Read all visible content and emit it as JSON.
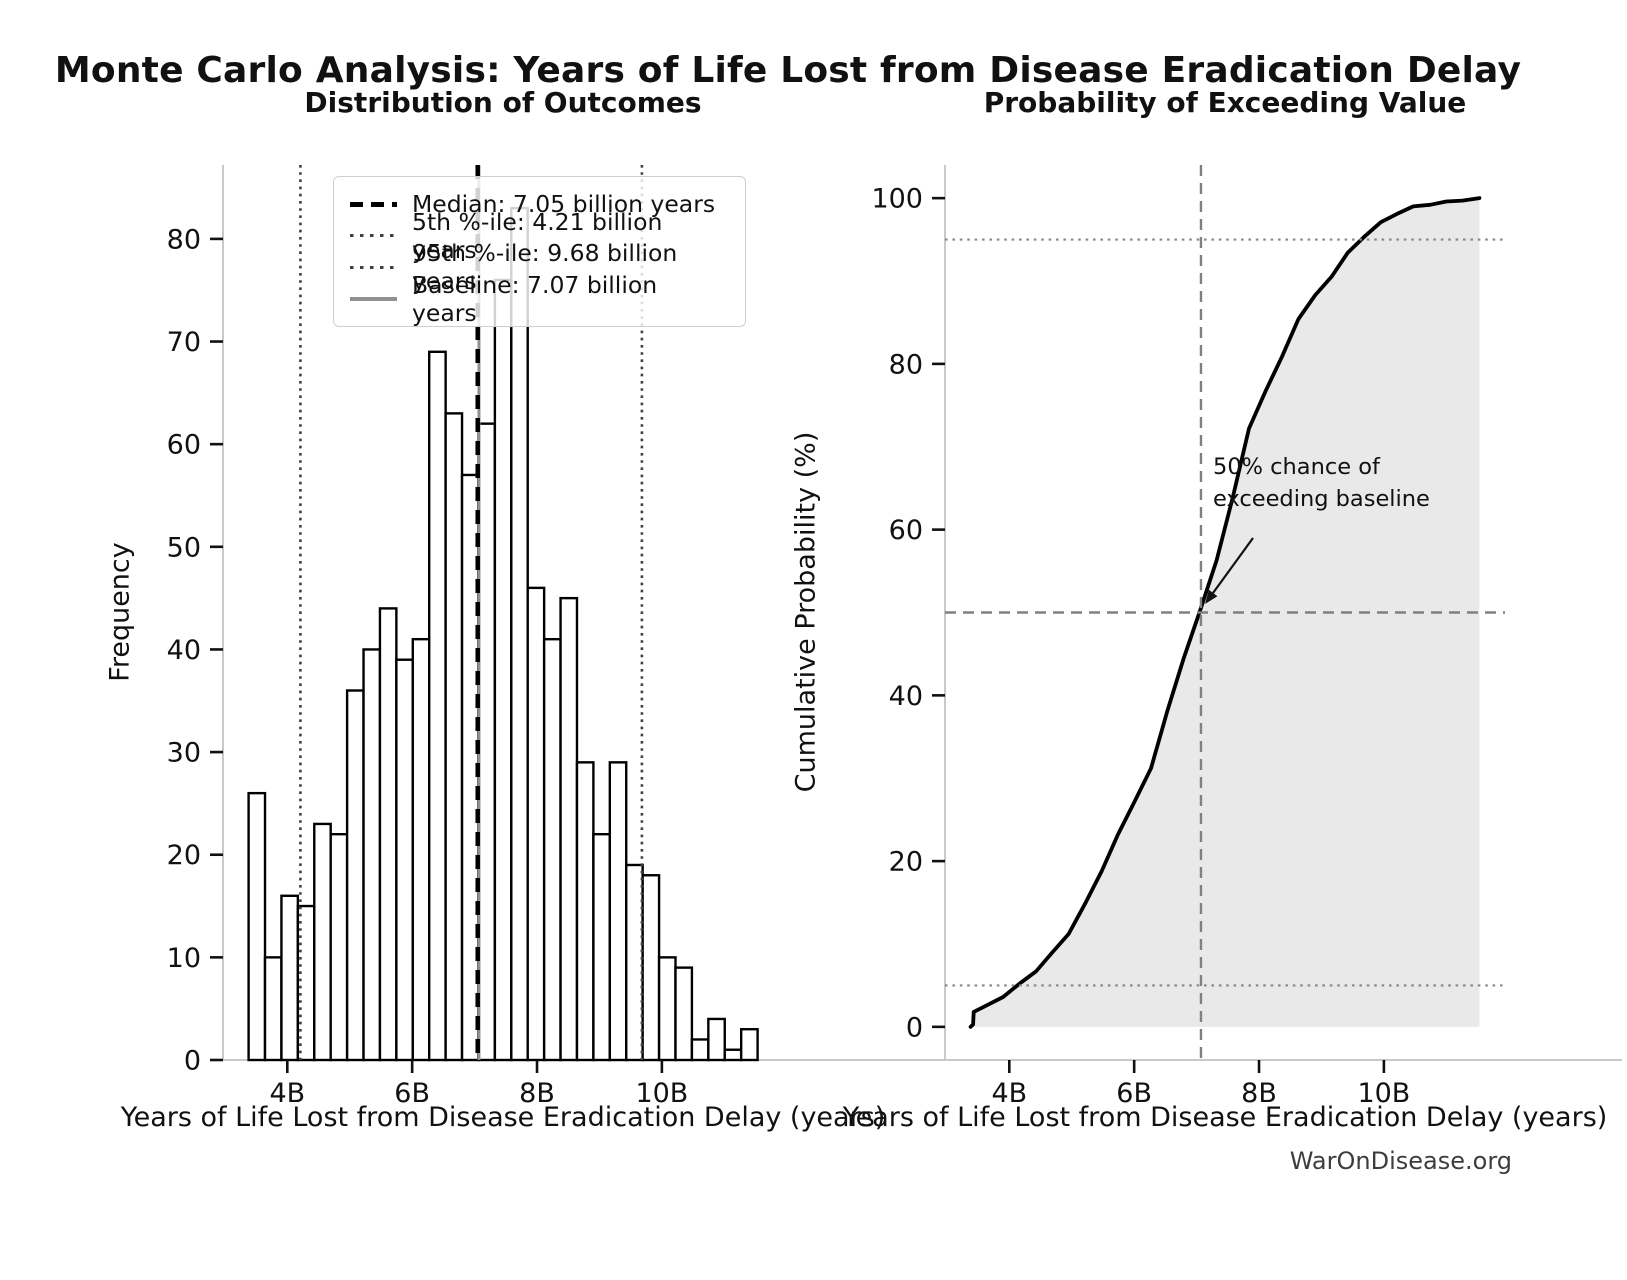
{
  "page_title": "Monte Carlo Analysis: Years of Life Lost from Disease Eradication Delay",
  "watermark": "WarOnDisease.org",
  "colors": {
    "bar_fill": "#ffffff",
    "bar_edge": "#000000",
    "curve": "#000000",
    "curve_fill": "#e7e7e7",
    "spine": "#c9c9c9",
    "tick": "#111111",
    "percentile_dotted": "#3f3f3f",
    "baseline_gray": "#909090",
    "ref_dashed_gray": "#808080",
    "median_black": "#000000"
  },
  "chart_data": [
    {
      "type": "bar",
      "variant": "histogram",
      "title": "Distribution of Outcomes",
      "xlabel": "Years of Life Lost from Disease Eradication Delay (years)",
      "ylabel": "Frequency",
      "unit": "billion years",
      "total_samples": 1000,
      "bin_start": 3.38,
      "bin_width": 0.263,
      "frequencies": [
        26,
        10,
        16,
        15,
        23,
        22,
        36,
        40,
        44,
        39,
        41,
        69,
        63,
        57,
        62,
        76,
        83,
        46,
        41,
        45,
        29,
        22,
        29,
        19,
        18,
        10,
        9,
        2,
        4,
        1,
        3
      ],
      "x_tick_values": [
        4,
        6,
        8,
        10
      ],
      "x_tick_labels": [
        "4B",
        "6B",
        "8B",
        "10B"
      ],
      "y_tick_values": [
        0,
        10,
        20,
        30,
        40,
        50,
        60,
        70,
        80
      ],
      "xlim": [
        2.97,
        11.94
      ],
      "ylim": [
        0,
        87.2
      ],
      "grid": false,
      "reference_lines": {
        "median": 7.05,
        "p5": 4.21,
        "p95": 9.68,
        "baseline": 7.07
      },
      "legend_position": "upper-left-inside",
      "legend": [
        {
          "label": "Median: 7.05 billion years",
          "style": "dashed-black"
        },
        {
          "label": "5th %-ile: 4.21 billion years",
          "style": "dotted-dark"
        },
        {
          "label": "95th %-ile: 9.68 billion years",
          "style": "dotted-dark"
        },
        {
          "label": "Baseline: 7.07 billion years",
          "style": "solid-gray"
        }
      ]
    },
    {
      "type": "line",
      "variant": "cumulative-distribution",
      "title": "Probability of Exceeding Value",
      "xlabel": "Years of Life Lost from Disease Eradication Delay (years)",
      "ylabel": "Cumulative Probability (%)",
      "fill_under": true,
      "x": [
        3.38,
        3.42,
        3.43,
        3.64,
        3.9,
        4.16,
        4.43,
        4.69,
        4.95,
        5.21,
        5.48,
        5.74,
        6.0,
        6.27,
        6.53,
        6.79,
        7.05,
        7.32,
        7.58,
        7.84,
        8.11,
        8.37,
        8.63,
        8.9,
        9.16,
        9.42,
        9.68,
        9.95,
        10.21,
        10.47,
        10.74,
        11.0,
        11.26,
        11.53
      ],
      "y": [
        0,
        0.3,
        1.8,
        2.6,
        3.6,
        5.2,
        6.7,
        9.0,
        11.2,
        14.8,
        18.8,
        23.2,
        27.1,
        31.2,
        38.1,
        44.4,
        50.1,
        56.3,
        63.9,
        72.2,
        76.8,
        80.9,
        85.4,
        88.3,
        90.5,
        93.4,
        95.3,
        97.1,
        98.1,
        99.0,
        99.2,
        99.6,
        99.7,
        100
      ],
      "x_tick_values": [
        4,
        6,
        8,
        10
      ],
      "x_tick_labels": [
        "4B",
        "6B",
        "8B",
        "10B"
      ],
      "y_tick_values": [
        0,
        20,
        40,
        60,
        80,
        100
      ],
      "xlim": [
        2.97,
        11.94
      ],
      "ylim": [
        -4,
        104
      ],
      "grid": false,
      "reference_lines": {
        "dotted_h": [
          5,
          95
        ],
        "dashed_h": 50,
        "dashed_v": 7.07
      },
      "annotation": {
        "line1": "50% chance of",
        "line2": "exceeding baseline",
        "arrow_target_x": 7.07,
        "arrow_target_y": 50
      }
    }
  ]
}
